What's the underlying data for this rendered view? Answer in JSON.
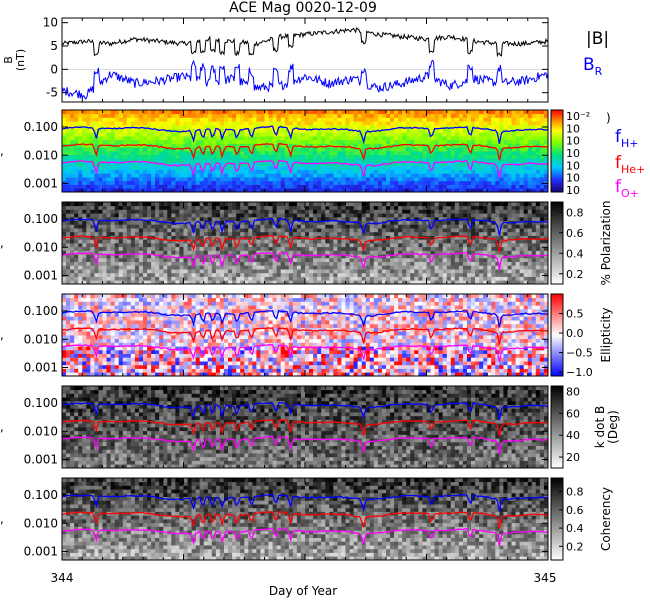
{
  "chart_data": {
    "type": "line",
    "title": "ACE Mag 0020-12-09",
    "x_axis": {
      "label": "Day of Year",
      "range": [
        344,
        345
      ],
      "tick_labels": [
        "344",
        "345"
      ]
    },
    "panels": [
      {
        "id": "field",
        "ylabel": "B (nT)",
        "ylabel_lines": [
          "B",
          "(nT)"
        ],
        "ylim": [
          -7,
          11
        ],
        "yticks": [
          10,
          5,
          0,
          -5
        ],
        "series": [
          {
            "name": "|B|",
            "color": "#000000",
            "x": [
              344.0,
              344.05,
              344.1,
              344.15,
              344.2,
              344.25,
              344.3,
              344.35,
              344.4,
              344.45,
              344.5,
              344.55,
              344.6,
              344.65,
              344.7,
              344.75,
              344.8,
              344.85,
              344.9,
              344.95,
              345.0
            ],
            "values": [
              5.5,
              6.0,
              5.5,
              6.5,
              6.0,
              5.5,
              6.5,
              6.0,
              5.5,
              7.0,
              7.5,
              8.0,
              8.5,
              7.5,
              7.0,
              6.5,
              7.0,
              6.0,
              5.5,
              5.5,
              6.0
            ]
          },
          {
            "name": "B_R",
            "label_main": "B",
            "label_sub": "R",
            "color": "#0000ff",
            "x": [
              344.0,
              344.05,
              344.1,
              344.15,
              344.2,
              344.25,
              344.3,
              344.35,
              344.4,
              344.45,
              344.5,
              344.55,
              344.6,
              344.65,
              344.7,
              344.75,
              344.8,
              344.85,
              344.9,
              344.95,
              345.0
            ],
            "values": [
              -4.5,
              -5.5,
              -1.0,
              -3.0,
              -2.5,
              -1.5,
              -3.0,
              -2.0,
              -4.0,
              -3.5,
              -1.5,
              -3.0,
              -2.0,
              -4.0,
              -3.0,
              -1.5,
              -3.5,
              -2.0,
              -3.0,
              -2.5,
              -1.0
            ]
          }
        ]
      },
      {
        "id": "power",
        "spectrogram": "rainbow",
        "ylim_log": [
          0.0005,
          0.4
        ],
        "ytick_labels": [
          "0.100",
          "0.010",
          "0.001"
        ],
        "colorbar": {
          "tick_labels": [
            "10⁻²",
            "10",
            "10",
            "10",
            "10",
            "10",
            "10"
          ],
          "label_end": ")"
        }
      },
      {
        "id": "polarization",
        "spectrogram": "gray",
        "ylim_log": [
          0.0005,
          0.4
        ],
        "ytick_labels": [
          "0.100",
          "0.010",
          "0.001"
        ],
        "colorbar": {
          "label": "% Polarization",
          "range": [
            0.1,
            0.9
          ],
          "tick_labels": [
            "0.8",
            "0.6",
            "0.4",
            "0.2"
          ]
        }
      },
      {
        "id": "ellipticity",
        "spectrogram": "bwr",
        "ylim_log": [
          0.0005,
          0.4
        ],
        "ytick_labels": [
          "0.100",
          "0.010",
          "0.001"
        ],
        "colorbar": {
          "label": "Ellipticity",
          "range": [
            -1.1,
            1.0
          ],
          "tick_labels": [
            "0.5",
            "0.0",
            "−0.5",
            "−1.0"
          ]
        }
      },
      {
        "id": "kdotb",
        "spectrogram": "gray",
        "ylim_log": [
          0.0005,
          0.4
        ],
        "ytick_labels": [
          "0.100",
          "0.010",
          "0.001"
        ],
        "colorbar": {
          "label_lines": [
            "k dot B",
            "(Deg)"
          ],
          "range": [
            10,
            85
          ],
          "tick_labels": [
            "80",
            "60",
            "40",
            "20"
          ]
        }
      },
      {
        "id": "coherency",
        "spectrogram": "gray",
        "ylim_log": [
          0.0005,
          0.4
        ],
        "ytick_labels": [
          "0.100",
          "0.010",
          "0.001"
        ],
        "colorbar": {
          "label": "Coherency",
          "range": [
            0.05,
            0.95
          ],
          "tick_labels": [
            "0.8",
            "0.6",
            "0.4",
            "0.2"
          ]
        }
      }
    ],
    "gyrofrequency_lines": [
      {
        "name": "f_H+",
        "label_main": "f",
        "label_sub": "H+",
        "color": "#0000ff",
        "base_value": 0.085
      },
      {
        "name": "f_He+",
        "label_main": "f",
        "label_sub": "He+",
        "color": "#ff0000",
        "base_value": 0.021
      },
      {
        "name": "f_O+",
        "label_main": "f",
        "label_sub": "O+",
        "color": "#ff00ff",
        "base_value": 0.0053
      }
    ]
  }
}
